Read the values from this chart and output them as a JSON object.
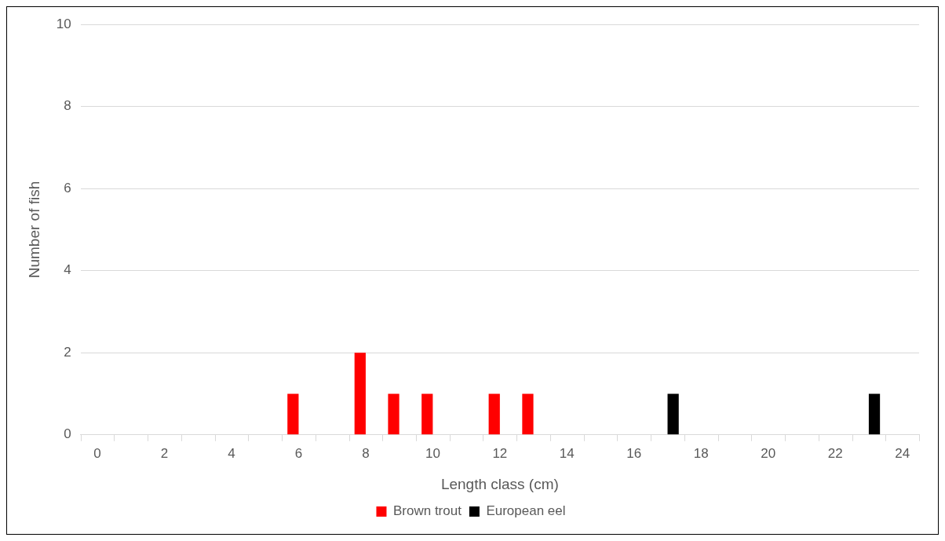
{
  "chart_data": {
    "type": "bar",
    "xlabel": "Length class (cm)",
    "ylabel": "Number of fish",
    "x": [
      0,
      1,
      2,
      3,
      4,
      5,
      6,
      7,
      8,
      9,
      10,
      11,
      12,
      13,
      14,
      15,
      16,
      17,
      18,
      19,
      20,
      21,
      22,
      23,
      24
    ],
    "series": [
      {
        "name": "Brown trout",
        "color": "#ff0000",
        "values": [
          0,
          0,
          0,
          0,
          0,
          0,
          1,
          0,
          2,
          1,
          1,
          0,
          1,
          1,
          0,
          0,
          0,
          0,
          0,
          0,
          0,
          0,
          0,
          0,
          0
        ]
      },
      {
        "name": "European eel",
        "color": "#000000",
        "values": [
          0,
          0,
          0,
          0,
          0,
          0,
          0,
          0,
          0,
          0,
          0,
          0,
          0,
          0,
          0,
          0,
          0,
          1,
          0,
          0,
          0,
          0,
          0,
          1,
          0
        ]
      }
    ],
    "xlim": [
      -0.5,
      24.5
    ],
    "xticks": [
      0,
      2,
      4,
      6,
      8,
      10,
      12,
      14,
      16,
      18,
      20,
      22,
      24
    ],
    "ylim": [
      0,
      10
    ],
    "yticks": [
      0,
      2,
      4,
      6,
      8,
      10
    ],
    "grid": "y",
    "legend": "bottom"
  }
}
